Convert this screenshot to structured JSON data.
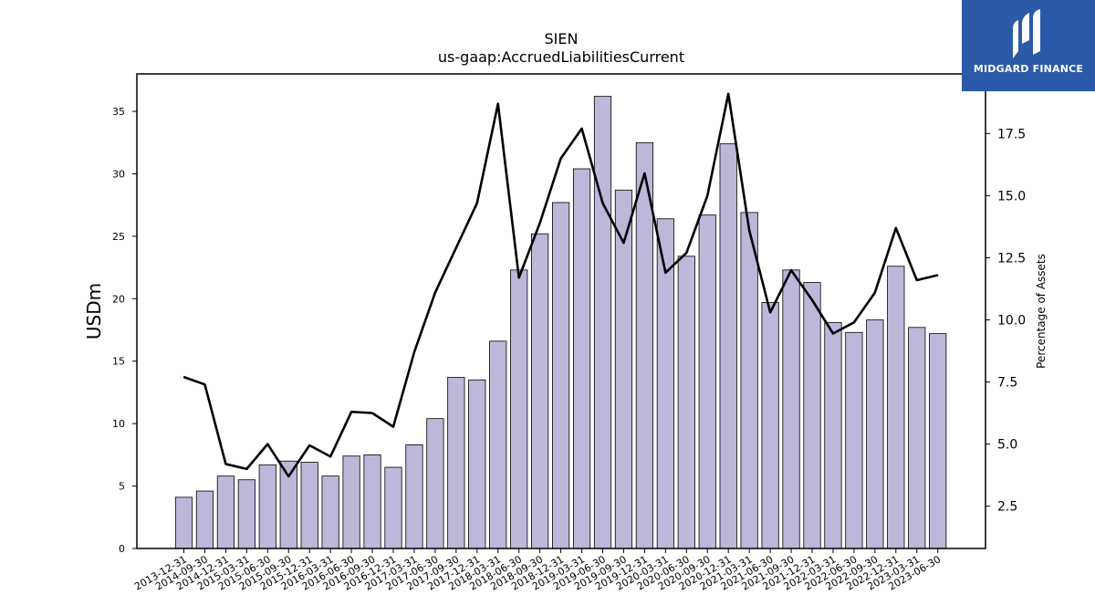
{
  "brand": {
    "name": "MIDGARD FINANCE",
    "color": "#2b5aa8"
  },
  "chart_data": {
    "type": "bar",
    "title": "SIEN",
    "subtitle": "us-gaap:AccruedLiabilitiesCurrent",
    "ylabel": "USDm",
    "y2label": "Percentage of Assets",
    "ylim": [
      0,
      38
    ],
    "y2lim": [
      0.8,
      19.9
    ],
    "yticks": [
      0,
      5,
      10,
      15,
      20,
      25,
      30,
      35
    ],
    "y2ticks": [
      2.5,
      5.0,
      7.5,
      10.0,
      12.5,
      15.0,
      17.5
    ],
    "grid": false,
    "categories": [
      "2013-12-31",
      "2014-09-30",
      "2014-12-31",
      "2015-03-31",
      "2015-06-30",
      "2015-09-30",
      "2015-12-31",
      "2016-03-31",
      "2016-06-30",
      "2016-09-30",
      "2016-12-31",
      "2017-03-31",
      "2017-06-30",
      "2017-09-30",
      "2017-12-31",
      "2018-03-31",
      "2018-06-30",
      "2018-09-30",
      "2018-12-31",
      "2019-03-31",
      "2019-06-30",
      "2019-09-30",
      "2019-12-31",
      "2020-03-31",
      "2020-06-30",
      "2020-09-30",
      "2020-12-31",
      "2021-03-31",
      "2021-06-30",
      "2021-09-30",
      "2021-12-31",
      "2022-03-31",
      "2022-06-30",
      "2022-09-30",
      "2022-12-31",
      "2023-03-31",
      "2023-06-30"
    ],
    "series": [
      {
        "type": "bar",
        "color": "#bcb8da",
        "values": [
          4.1,
          4.6,
          5.8,
          5.5,
          6.7,
          7.0,
          6.9,
          5.8,
          7.4,
          7.5,
          6.5,
          8.3,
          10.4,
          13.7,
          13.5,
          16.6,
          22.3,
          25.2,
          27.7,
          30.4,
          36.2,
          28.7,
          32.5,
          26.4,
          23.4,
          26.7,
          32.4,
          26.9,
          19.7,
          22.3,
          21.3,
          18.1,
          17.3,
          18.3,
          22.6,
          17.7,
          17.2
        ]
      },
      {
        "type": "line",
        "axis": "right",
        "color": "#000000",
        "values": [
          7.7,
          7.4,
          4.2,
          4.0,
          5.0,
          3.7,
          4.95,
          4.5,
          6.3,
          6.25,
          5.7,
          8.7,
          11.1,
          12.9,
          14.7,
          18.7,
          11.7,
          13.9,
          16.5,
          17.7,
          14.7,
          13.1,
          15.9,
          11.9,
          12.7,
          15.0,
          19.1,
          13.6,
          10.3,
          12.0,
          10.8,
          9.45,
          9.9,
          11.1,
          13.7,
          11.6,
          11.8
        ]
      }
    ]
  }
}
